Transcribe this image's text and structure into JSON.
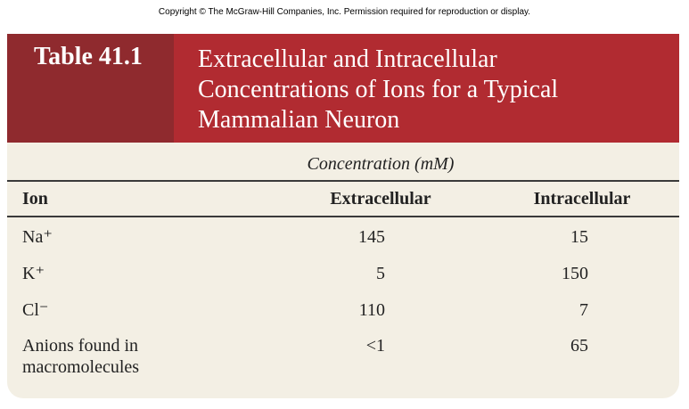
{
  "copyright": "Copyright © The McGraw-Hill Companies, Inc.  Permission required for reproduction or display.",
  "header": {
    "label": "Table 41.1",
    "title_lines": [
      "Extracellular and Intracellular",
      "Concentrations of Ions for a Typical",
      "Mammalian Neuron"
    ]
  },
  "table": {
    "group_header": "Concentration (mM)",
    "columns": [
      "Ion",
      "Extracellular",
      "Intracellular"
    ],
    "rows": [
      [
        "Na⁺",
        145,
        15
      ],
      [
        "K⁺",
        5,
        150
      ],
      [
        "Cl⁻",
        110,
        7
      ],
      [
        "Anions found in macromolecules",
        "<1",
        65
      ]
    ]
  }
}
